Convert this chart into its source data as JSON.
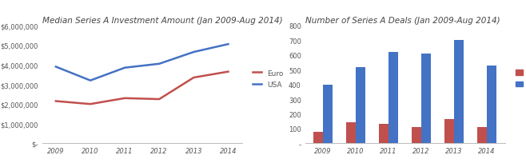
{
  "line_chart": {
    "title": "Median Series A Investment Amount (Jan 2009-Aug 2014)",
    "years": [
      2009,
      2010,
      2011,
      2012,
      2013,
      2014
    ],
    "euro_values": [
      2150000,
      2000000,
      2300000,
      2250000,
      3350000,
      3650000
    ],
    "usa_values": [
      3900000,
      3200000,
      3850000,
      4050000,
      4650000,
      5050000
    ],
    "euro_color": "#C0504D",
    "usa_color": "#4472C4",
    "ylim": [
      0,
      6000000
    ],
    "yticks": [
      0,
      1000000,
      2000000,
      3000000,
      4000000,
      5000000,
      6000000
    ],
    "ytick_labels": [
      "$-",
      "$1,000,000",
      "$2,000,000",
      "$3,000,000",
      "$4,000,000",
      "$5,000,000",
      "$6,000,000"
    ]
  },
  "bar_chart": {
    "title": "Number of Series A Deals (Jan 2009-Aug 2014)",
    "years": [
      2009,
      2010,
      2011,
      2012,
      2013,
      2014
    ],
    "euro_values": [
      80,
      145,
      130,
      110,
      165,
      110
    ],
    "usa_values": [
      400,
      515,
      620,
      610,
      700,
      530
    ],
    "euro_color": "#C0504D",
    "usa_color": "#4472C4",
    "ylim": [
      0,
      800
    ],
    "yticks": [
      0,
      100,
      200,
      300,
      400,
      500,
      600,
      700,
      800
    ],
    "ytick_labels": [
      "-",
      "100",
      "200",
      "300",
      "400",
      "500",
      "600",
      "700",
      "800"
    ]
  },
  "bg_color": "#ffffff",
  "title_fontsize": 7.5,
  "title_style": "italic",
  "title_color": "#444444",
  "tick_fontsize": 6,
  "legend_fontsize": 6.5,
  "line_width": 1.8
}
